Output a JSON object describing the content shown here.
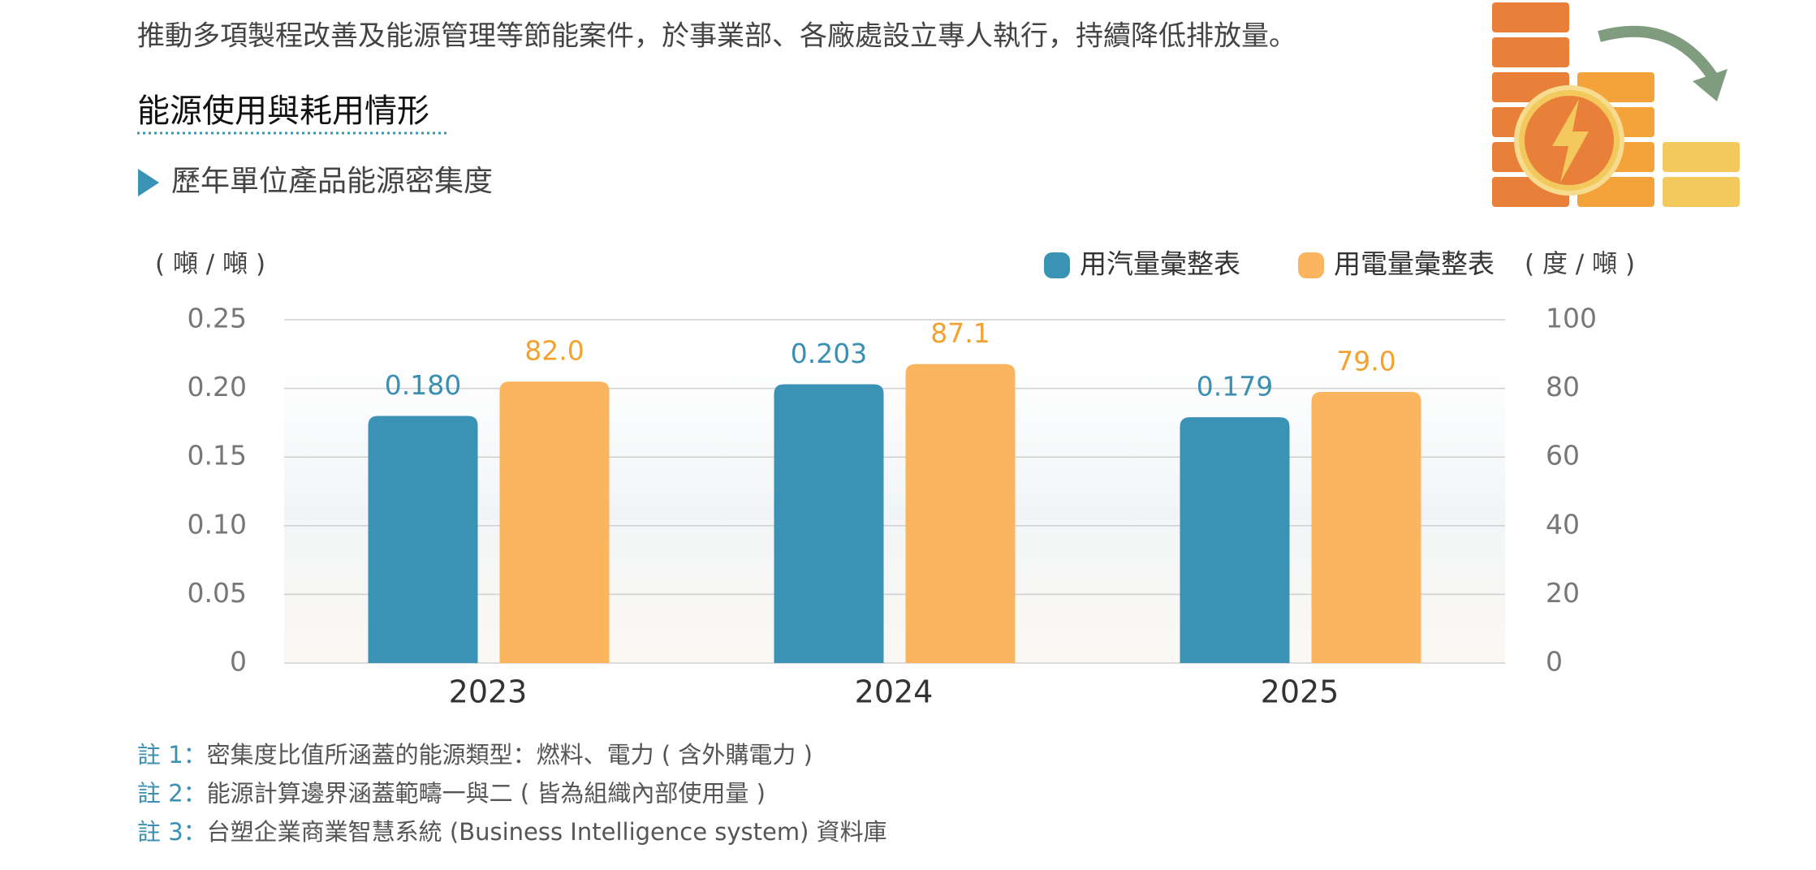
{
  "intro": "推動多項製程改善及能源管理等節能案件，於事業部、各廠處設立專人執行，持續降低排放量。",
  "section_title": "能源使用與耗用情形",
  "chart_data": {
    "type": "bar",
    "title": "歷年單位產品能源密集度",
    "y_label": "( 噸 / 噸 )",
    "y2_label": "( 度 / 噸 )",
    "categories": [
      "2023",
      "2024",
      "2025"
    ],
    "series": [
      {
        "name": "用汽量彙整表",
        "color": "#3a92b4",
        "values": [
          0.18,
          0.203,
          0.179
        ],
        "value_labels": [
          "0.180",
          "0.203",
          "0.179"
        ]
      },
      {
        "name": "用電量彙整表",
        "color": "#fbb55f",
        "axis": "y2",
        "values": [
          82.0,
          87.1,
          79.0
        ],
        "value_labels": [
          "82.0",
          "87.1",
          "79.0"
        ]
      }
    ],
    "ylim": [
      0,
      0.25
    ],
    "yticks": [
      0,
      0.05,
      {
        "value": 0.1,
        "label": "0.10"
      },
      0.15,
      {
        "value": 0.2,
        "label": "0.20"
      },
      0.25
    ],
    "y2lim": [
      0,
      100
    ],
    "y2ticks": [
      0,
      20,
      40,
      60,
      80,
      100
    ],
    "grid": true,
    "legend": "top-right"
  },
  "notes": [
    {
      "label": "註 1：",
      "text": "密集度比值所涵蓋的能源類型：燃料、電力 ( 含外購電力 )"
    },
    {
      "label": "註 2：",
      "text": "能源計算邊界涵蓋範疇一與二 ( 皆為組織內部使用量 )"
    },
    {
      "label": "註 3：",
      "text": "台塑企業商業智慧系統 (Business Intelligence system) 資料庫"
    }
  ]
}
